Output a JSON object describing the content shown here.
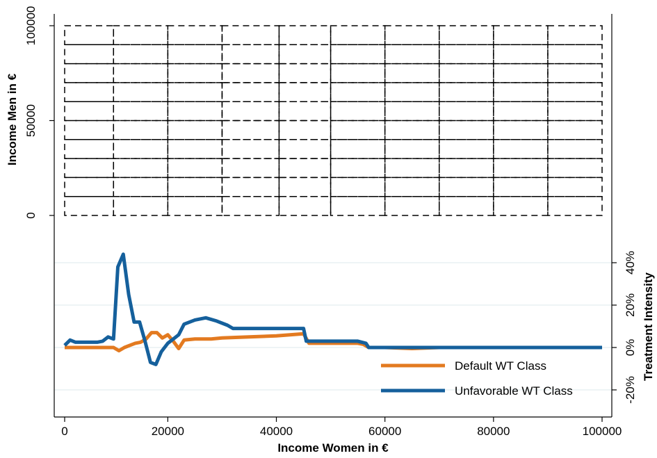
{
  "chart_data": {
    "type": "line",
    "x_axis": {
      "label": "Income Women in €",
      "range": [
        0,
        100000
      ],
      "ticks": [
        0,
        20000,
        40000,
        60000,
        80000,
        100000
      ],
      "tick_labels": [
        "0",
        "20000",
        "40000",
        "60000",
        "80000",
        "100000"
      ]
    },
    "y_axis_left": {
      "label": "Income Men in €",
      "range": [
        0,
        100000
      ],
      "ticks": [
        0,
        50000,
        100000
      ],
      "tick_labels": [
        "0",
        "50000",
        "100000"
      ]
    },
    "y_axis_right": {
      "label": "Treatment Intensity",
      "range": [
        -0.2,
        0.4
      ],
      "ticks": [
        -0.2,
        0,
        0.2,
        0.4
      ],
      "tick_labels": [
        "-20%",
        "0%",
        "20%",
        "40%"
      ]
    },
    "grid_lines_right_axis": true,
    "top_panel": {
      "type": "grid-of-dashed-rectangles",
      "x_breaks": [
        1000,
        10000,
        20000,
        30000,
        40500,
        50000,
        60000,
        70000,
        80000,
        90000,
        100000
      ],
      "y_breaks": [
        0,
        10000,
        20000,
        30000,
        40000,
        50000,
        60000,
        70000,
        80000,
        90000,
        100000
      ],
      "line_style": "dashed"
    },
    "series": [
      {
        "name": "Default WT Class",
        "color": "#e37a20",
        "points": [
          [
            1000,
            0
          ],
          [
            2000,
            0
          ],
          [
            5000,
            0
          ],
          [
            8000,
            0
          ],
          [
            10000,
            0
          ],
          [
            11000,
            -0.015
          ],
          [
            12000,
            0
          ],
          [
            13000,
            0.01
          ],
          [
            14000,
            0.02
          ],
          [
            15000,
            0.025
          ],
          [
            16000,
            0.04
          ],
          [
            17000,
            0.07
          ],
          [
            18000,
            0.07
          ],
          [
            19000,
            0.045
          ],
          [
            20000,
            0.06
          ],
          [
            21000,
            0.03
          ],
          [
            22000,
            -0.005
          ],
          [
            23000,
            0.035
          ],
          [
            25000,
            0.04
          ],
          [
            28000,
            0.04
          ],
          [
            30000,
            0.045
          ],
          [
            35000,
            0.05
          ],
          [
            40000,
            0.055
          ],
          [
            45000,
            0.065
          ],
          [
            46000,
            0.02
          ],
          [
            50000,
            0.02
          ],
          [
            55000,
            0.02
          ],
          [
            56000,
            0.015
          ],
          [
            57000,
            0
          ],
          [
            60000,
            0
          ],
          [
            65000,
            -0.005
          ],
          [
            70000,
            0
          ],
          [
            80000,
            0
          ],
          [
            90000,
            0
          ],
          [
            100000,
            0
          ]
        ]
      },
      {
        "name": "Unfavorable WT Class",
        "color": "#15609c",
        "points": [
          [
            1000,
            0.01
          ],
          [
            2000,
            0.035
          ],
          [
            3000,
            0.025
          ],
          [
            5000,
            0.025
          ],
          [
            7000,
            0.025
          ],
          [
            8000,
            0.03
          ],
          [
            9000,
            0.05
          ],
          [
            10000,
            0.04
          ],
          [
            10800,
            0.38
          ],
          [
            11800,
            0.44
          ],
          [
            12800,
            0.25
          ],
          [
            13800,
            0.12
          ],
          [
            14800,
            0.12
          ],
          [
            15800,
            0.03
          ],
          [
            16800,
            -0.07
          ],
          [
            17800,
            -0.08
          ],
          [
            18800,
            -0.02
          ],
          [
            20000,
            0.02
          ],
          [
            21000,
            0.04
          ],
          [
            22000,
            0.06
          ],
          [
            23000,
            0.11
          ],
          [
            25000,
            0.13
          ],
          [
            27000,
            0.14
          ],
          [
            29000,
            0.125
          ],
          [
            31000,
            0.105
          ],
          [
            32000,
            0.09
          ],
          [
            35000,
            0.09
          ],
          [
            40000,
            0.09
          ],
          [
            45000,
            0.09
          ],
          [
            45500,
            0.03
          ],
          [
            50000,
            0.03
          ],
          [
            55000,
            0.03
          ],
          [
            56500,
            0.02
          ],
          [
            57000,
            0
          ],
          [
            60000,
            0
          ],
          [
            70000,
            0
          ],
          [
            80000,
            0
          ],
          [
            90000,
            0
          ],
          [
            100000,
            0
          ]
        ]
      }
    ],
    "legend": {
      "position": "bottom-right",
      "entries": [
        "Default WT Class",
        "Unfavorable WT Class"
      ]
    }
  }
}
